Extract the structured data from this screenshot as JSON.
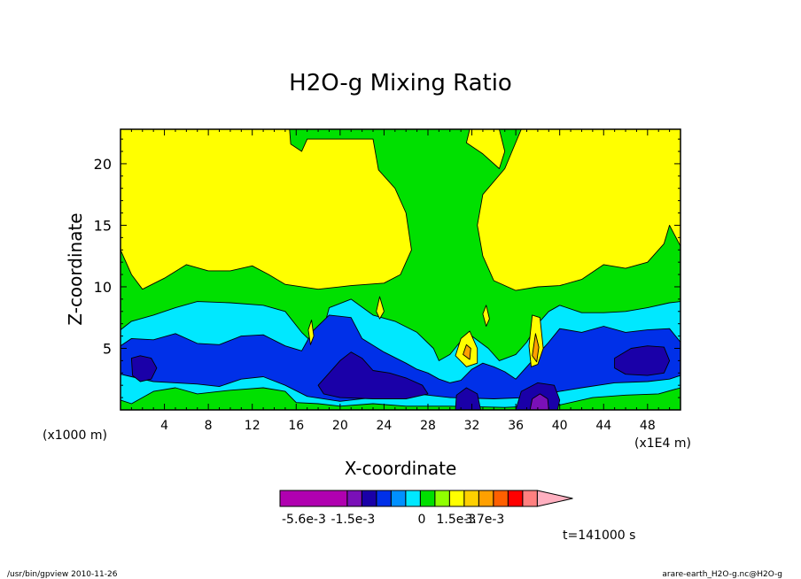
{
  "chart_data": {
    "type": "heatmap",
    "title": "H2O-g Mixing Ratio",
    "xlabel": "X-coordinate",
    "ylabel": "Z-coordinate",
    "x_unit_label": "(x1000 m)",
    "x_scale_label": "(x1E4 m)",
    "x_ticks": [
      4,
      8,
      12,
      16,
      20,
      24,
      28,
      32,
      36,
      40,
      44,
      48
    ],
    "y_ticks": [
      5,
      10,
      15,
      20
    ],
    "xlim": [
      0,
      51
    ],
    "ylim": [
      0,
      22.8
    ],
    "colorbar": {
      "colors": [
        "#b000b0",
        "#7a10b8",
        "#1a00a8",
        "#0030e8",
        "#0090ff",
        "#00e8ff",
        "#00e000",
        "#90ff00",
        "#ffff00",
        "#ffd000",
        "#ffa000",
        "#ff6000",
        "#ff0000",
        "#ff8080",
        "#ffb0c0"
      ],
      "tick_labels": [
        "-5.6e-3",
        "-1.5e-3",
        "0",
        "1.5e-3",
        "3.7e-3"
      ]
    },
    "time_label": "t=141000 s",
    "regions": [
      {
        "level": "green",
        "color": "#00e000",
        "points": [
          [
            0,
            0
          ],
          [
            51,
            0
          ],
          [
            51,
            22.8
          ],
          [
            0,
            22.8
          ]
        ]
      },
      {
        "level": "yellow-upper",
        "color": "#ffff00",
        "points": [
          [
            0,
            22.8
          ],
          [
            0,
            13
          ],
          [
            1,
            11
          ],
          [
            2,
            9.8
          ],
          [
            4,
            10.7
          ],
          [
            6,
            11.8
          ],
          [
            8,
            11.3
          ],
          [
            10,
            11.3
          ],
          [
            12,
            11.7
          ],
          [
            13.5,
            11
          ],
          [
            15,
            10.2
          ],
          [
            18,
            9.8
          ],
          [
            21,
            10.1
          ],
          [
            24,
            10.3
          ],
          [
            25.5,
            11
          ],
          [
            26.5,
            13
          ],
          [
            26,
            16
          ],
          [
            25,
            18
          ],
          [
            23.5,
            19.5
          ],
          [
            23,
            22
          ],
          [
            17,
            22
          ],
          [
            16.5,
            21
          ],
          [
            15.5,
            21.6
          ],
          [
            15.4,
            22.8
          ]
        ]
      },
      {
        "level": "yellow-right",
        "color": "#ffff00",
        "points": [
          [
            31.8,
            22.8
          ],
          [
            31.5,
            21.7
          ],
          [
            33,
            20.8
          ],
          [
            34.5,
            19.6
          ],
          [
            35,
            21
          ],
          [
            34.5,
            22.8
          ]
        ]
      },
      {
        "level": "yellow-right2",
        "color": "#ffff00",
        "points": [
          [
            36.5,
            22.8
          ],
          [
            35,
            19.6
          ],
          [
            33,
            17.5
          ],
          [
            32.5,
            15
          ],
          [
            33,
            12.5
          ],
          [
            34,
            10.5
          ],
          [
            36,
            9.7
          ],
          [
            38,
            10
          ],
          [
            40,
            10.1
          ],
          [
            42,
            10.6
          ],
          [
            44,
            11.8
          ],
          [
            46,
            11.5
          ],
          [
            48,
            12
          ],
          [
            49.5,
            13.5
          ],
          [
            50,
            15
          ],
          [
            51,
            13.3
          ],
          [
            51,
            22.8
          ]
        ]
      },
      {
        "level": "cyan",
        "color": "#00e8ff",
        "points": [
          [
            0,
            6.5
          ],
          [
            1,
            7.2
          ],
          [
            3,
            7.7
          ],
          [
            5,
            8.3
          ],
          [
            7,
            8.8
          ],
          [
            10,
            8.7
          ],
          [
            13,
            8.5
          ],
          [
            15,
            8
          ],
          [
            16.5,
            6.3
          ],
          [
            18,
            5
          ],
          [
            19,
            8.3
          ],
          [
            21,
            9
          ],
          [
            23,
            7.7
          ],
          [
            25,
            7.2
          ],
          [
            27,
            6.3
          ],
          [
            28.5,
            5
          ],
          [
            29,
            4
          ],
          [
            30,
            4.5
          ],
          [
            31,
            5.6
          ],
          [
            32,
            6
          ],
          [
            33.5,
            5
          ],
          [
            34.5,
            4
          ],
          [
            36,
            4.5
          ],
          [
            37,
            5.5
          ],
          [
            38,
            7
          ],
          [
            39,
            8
          ],
          [
            40,
            8.5
          ],
          [
            42,
            7.9
          ],
          [
            44,
            7.9
          ],
          [
            46,
            8
          ],
          [
            48,
            8.3
          ],
          [
            50,
            8.7
          ],
          [
            51,
            8.8
          ],
          [
            51,
            1.8
          ],
          [
            49,
            1.3
          ],
          [
            46,
            1.2
          ],
          [
            43,
            1
          ],
          [
            40,
            0.4
          ],
          [
            35,
            0.2
          ],
          [
            30,
            0.3
          ],
          [
            26,
            0.3
          ],
          [
            23,
            0.5
          ],
          [
            20,
            0.3
          ],
          [
            18,
            0.5
          ],
          [
            16,
            0.6
          ],
          [
            15,
            1.5
          ],
          [
            13,
            1.8
          ],
          [
            10,
            1.6
          ],
          [
            7,
            1.3
          ],
          [
            5,
            1.8
          ],
          [
            3,
            1.5
          ],
          [
            1,
            0.5
          ],
          [
            0,
            0.8
          ]
        ]
      },
      {
        "level": "blue",
        "color": "#0030e8",
        "points": [
          [
            0,
            5.2
          ],
          [
            1,
            5.8
          ],
          [
            3,
            5.7
          ],
          [
            5,
            6.2
          ],
          [
            7,
            5.4
          ],
          [
            9,
            5.3
          ],
          [
            11,
            6
          ],
          [
            13,
            6.1
          ],
          [
            15,
            5.2
          ],
          [
            16.5,
            4.8
          ],
          [
            17.5,
            6.4
          ],
          [
            19,
            7.7
          ],
          [
            21,
            7.5
          ],
          [
            22,
            5.8
          ],
          [
            24,
            4.7
          ],
          [
            26,
            3.8
          ],
          [
            27,
            3.3
          ],
          [
            28,
            3
          ],
          [
            29,
            2.5
          ],
          [
            30,
            2.2
          ],
          [
            31,
            2.4
          ],
          [
            32,
            3.3
          ],
          [
            33,
            3.8
          ],
          [
            34,
            3.5
          ],
          [
            35,
            3.1
          ],
          [
            36,
            2.5
          ],
          [
            37,
            3.5
          ],
          [
            38,
            4.5
          ],
          [
            39,
            5.5
          ],
          [
            40,
            6.6
          ],
          [
            42,
            6.3
          ],
          [
            44,
            6.8
          ],
          [
            46,
            6.3
          ],
          [
            48,
            6.5
          ],
          [
            50,
            6.6
          ],
          [
            51,
            5.5
          ],
          [
            51,
            2.8
          ],
          [
            50,
            2.5
          ],
          [
            48,
            2.3
          ],
          [
            45,
            2.2
          ],
          [
            42,
            1.8
          ],
          [
            40,
            1.5
          ],
          [
            37,
            1
          ],
          [
            34,
            0.9
          ],
          [
            30,
            1
          ],
          [
            27,
            1.3
          ],
          [
            23,
            1
          ],
          [
            20,
            0.7
          ],
          [
            17,
            1.1
          ],
          [
            15,
            2
          ],
          [
            13,
            2.7
          ],
          [
            11,
            2.5
          ],
          [
            9,
            1.9
          ],
          [
            7,
            2.1
          ],
          [
            5,
            2.2
          ],
          [
            3,
            2.3
          ],
          [
            1,
            2.7
          ],
          [
            0,
            2.9
          ]
        ]
      },
      {
        "level": "navy-left",
        "color": "#1a00a8",
        "points": [
          [
            1,
            4.2
          ],
          [
            1.8,
            4.4
          ],
          [
            2.8,
            4.2
          ],
          [
            3.3,
            3.4
          ],
          [
            2.8,
            2.5
          ],
          [
            1.8,
            2.3
          ],
          [
            1.1,
            2.8
          ]
        ]
      },
      {
        "level": "navy-mid",
        "color": "#1a00a8",
        "points": [
          [
            18,
            2
          ],
          [
            19,
            3
          ],
          [
            20,
            4
          ],
          [
            21,
            4.7
          ],
          [
            22,
            4.2
          ],
          [
            23,
            3.2
          ],
          [
            24.5,
            3
          ],
          [
            26,
            2.6
          ],
          [
            27.5,
            2
          ],
          [
            28,
            1.3
          ],
          [
            26,
            0.9
          ],
          [
            23,
            0.9
          ],
          [
            20,
            1
          ],
          [
            18.5,
            1.3
          ]
        ]
      },
      {
        "level": "navy-right",
        "color": "#1a00a8",
        "points": [
          [
            45,
            4.2
          ],
          [
            46.5,
            5
          ],
          [
            48,
            5.2
          ],
          [
            49.5,
            5.1
          ],
          [
            50,
            4
          ],
          [
            49.5,
            3
          ],
          [
            48,
            2.8
          ],
          [
            46,
            2.9
          ],
          [
            45,
            3.4
          ]
        ]
      },
      {
        "level": "navy-bottom",
        "color": "#1a00a8",
        "points": [
          [
            30.5,
            0
          ],
          [
            30.6,
            1.2
          ],
          [
            31.5,
            1.8
          ],
          [
            32.5,
            1.3
          ],
          [
            32.8,
            0
          ]
        ]
      },
      {
        "level": "navy-bottom2",
        "color": "#1a00a8",
        "points": [
          [
            36,
            0
          ],
          [
            36.5,
            1.5
          ],
          [
            38,
            2.2
          ],
          [
            39.5,
            2
          ],
          [
            40,
            0.8
          ],
          [
            39.8,
            0
          ]
        ]
      },
      {
        "level": "purple",
        "color": "#7a10b8",
        "points": [
          [
            37.3,
            0
          ],
          [
            37.5,
            0.9
          ],
          [
            38.2,
            1.3
          ],
          [
            38.9,
            0.9
          ],
          [
            39,
            0
          ]
        ]
      },
      {
        "level": "yellow-core-32",
        "color": "#ffff00",
        "points": [
          [
            30.5,
            4.4
          ],
          [
            31,
            5.8
          ],
          [
            31.8,
            6.4
          ],
          [
            32.5,
            5
          ],
          [
            32.5,
            3.8
          ],
          [
            31.5,
            3.5
          ]
        ]
      },
      {
        "level": "orange-core-32",
        "color": "#ffa000",
        "points": [
          [
            31.2,
            4.5
          ],
          [
            31.5,
            5.3
          ],
          [
            31.9,
            5
          ],
          [
            31.8,
            4.1
          ]
        ]
      },
      {
        "level": "yellow-core-37",
        "color": "#ffff00",
        "points": [
          [
            37.2,
            5.2
          ],
          [
            37.5,
            7.7
          ],
          [
            38.2,
            7.5
          ],
          [
            38.5,
            5
          ],
          [
            38,
            3.7
          ],
          [
            37.4,
            3.5
          ]
        ]
      },
      {
        "level": "orange-core-37",
        "color": "#ffa000",
        "points": [
          [
            37.5,
            4.4
          ],
          [
            37.8,
            6.2
          ],
          [
            38.1,
            5.1
          ],
          [
            37.9,
            3.9
          ]
        ]
      },
      {
        "level": "yellow-spike-17",
        "color": "#ffff00",
        "points": [
          [
            17.1,
            6.5
          ],
          [
            17.4,
            7.3
          ],
          [
            17.6,
            6
          ],
          [
            17.3,
            5.3
          ]
        ]
      },
      {
        "level": "yellow-spike-23",
        "color": "#ffff00",
        "points": [
          [
            23.3,
            8
          ],
          [
            23.6,
            9.2
          ],
          [
            24,
            8
          ],
          [
            23.6,
            7.4
          ]
        ]
      },
      {
        "level": "yellow-spike-33",
        "color": "#ffff00",
        "points": [
          [
            33,
            7.8
          ],
          [
            33.3,
            8.5
          ],
          [
            33.6,
            7.4
          ],
          [
            33.3,
            6.8
          ]
        ]
      }
    ]
  },
  "footer": {
    "left": "/usr/bin/gpview   2010-11-26",
    "right": "arare-earth_H2O-g.nc@H2O-g"
  }
}
